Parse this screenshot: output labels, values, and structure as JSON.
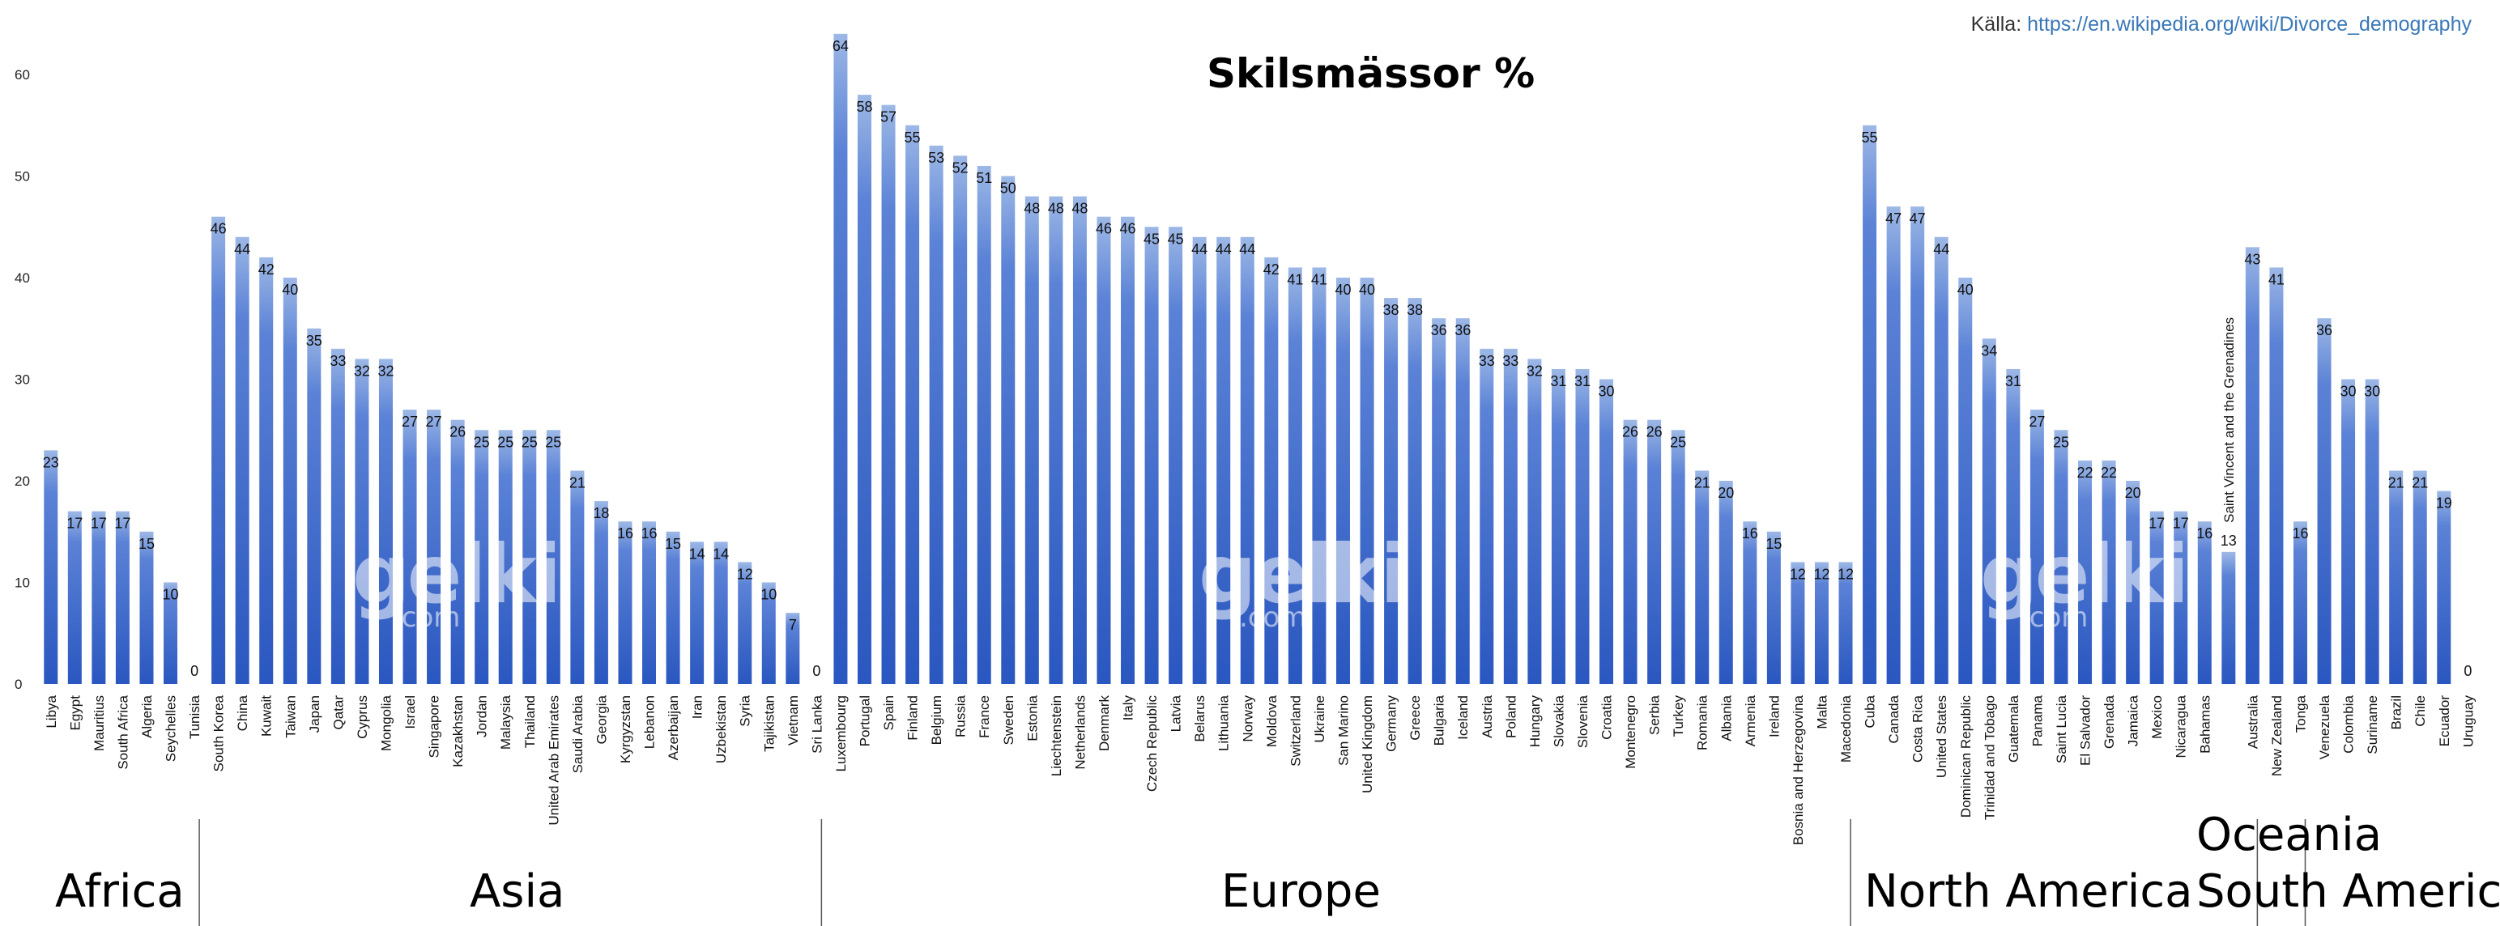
{
  "source": {
    "label": "Källa:",
    "url": "https://en.wikipedia.org/wiki/Divorce_demography"
  },
  "watermark": {
    "brand": "gelki",
    "suffix": ".com"
  },
  "colors": {
    "bar_top": "#9db8e6",
    "bar_bottom": "#2a57c0",
    "divider": "#555555"
  },
  "chart_data": {
    "type": "bar",
    "title": "Skilsmässor %",
    "xlabel": "",
    "ylabel": "",
    "ylim": [
      0,
      64
    ],
    "yticks": [
      0,
      10,
      20,
      30,
      40,
      50,
      60
    ],
    "grid": false,
    "categories": [
      "Libya",
      "Egypt",
      "Mauritius",
      "South Africa",
      "Algeria",
      "Seychelles",
      "Tunisia",
      "South Korea",
      "China",
      "Kuwait",
      "Taiwan",
      "Japan",
      "Qatar",
      "Cyprus",
      "Mongolia",
      "Israel",
      "Singapore",
      "Kazakhstan",
      "Jordan",
      "Malaysia",
      "Thailand",
      "United Arab Emirates",
      "Saudi Arabia",
      "Georgia",
      "Kyrgyzstan",
      "Lebanon",
      "Azerbaijan",
      "Iran",
      "Uzbekistan",
      "Syria",
      "Tajikistan",
      "Vietnam",
      "Sri Lanka",
      "Luxembourg",
      "Portugal",
      "Spain",
      "Finland",
      "Belgium",
      "Russia",
      "France",
      "Sweden",
      "Estonia",
      "Liechtenstein",
      "Netherlands",
      "Denmark",
      "Italy",
      "Czech Republic",
      "Latvia",
      "Belarus",
      "Lithuania",
      "Norway",
      "Moldova",
      "Switzerland",
      "Ukraine",
      "San Marino",
      "United Kingdom",
      "Germany",
      "Greece",
      "Bulgaria",
      "Iceland",
      "Austria",
      "Poland",
      "Hungary",
      "Slovakia",
      "Slovenia",
      "Croatia",
      "Montenegro",
      "Serbia",
      "Turkey",
      "Romania",
      "Albania",
      "Armenia",
      "Ireland",
      "Bosnia and Herzegovina",
      "Malta",
      "Macedonia",
      "Cuba",
      "Canada",
      "Costa Rica",
      "United States",
      "Dominican Republic",
      "Trinidad and Tobago",
      "Guatemala",
      "Panama",
      "Saint Lucia",
      "El Salvador",
      "Grenada",
      "Jamaica",
      "Mexico",
      "Nicaragua",
      "Bahamas",
      "Saint Vincent and the Grenadines",
      "Australia",
      "New Zealand",
      "Tonga",
      "Venezuela",
      "Colombia",
      "Suriname",
      "Brazil",
      "Chile",
      "Ecuador",
      "Uruguay"
    ],
    "values": [
      23,
      17,
      17,
      17,
      15,
      10,
      0,
      46,
      44,
      42,
      40,
      35,
      33,
      32,
      32,
      27,
      27,
      26,
      25,
      25,
      25,
      25,
      21,
      18,
      16,
      16,
      15,
      14,
      14,
      12,
      10,
      7,
      0,
      64,
      58,
      57,
      55,
      53,
      52,
      51,
      50,
      48,
      48,
      48,
      46,
      46,
      45,
      45,
      44,
      44,
      44,
      42,
      41,
      41,
      40,
      40,
      38,
      38,
      36,
      36,
      33,
      33,
      32,
      31,
      31,
      30,
      26,
      26,
      25,
      21,
      20,
      16,
      15,
      12,
      12,
      12,
      55,
      47,
      47,
      44,
      40,
      34,
      31,
      27,
      25,
      22,
      22,
      20,
      17,
      17,
      16,
      13,
      43,
      41,
      16,
      36,
      30,
      30,
      21,
      21,
      19,
      0
    ],
    "regions": [
      {
        "name": "Africa",
        "start": 0,
        "end": 6
      },
      {
        "name": "Asia",
        "start": 7,
        "end": 32
      },
      {
        "name": "Europe",
        "start": 33,
        "end": 75
      },
      {
        "name": "North America",
        "start": 76,
        "end": 91
      },
      {
        "name": "Oceania",
        "start": 92,
        "end": 94
      },
      {
        "name": "South America",
        "start": 95,
        "end": 101
      }
    ]
  }
}
